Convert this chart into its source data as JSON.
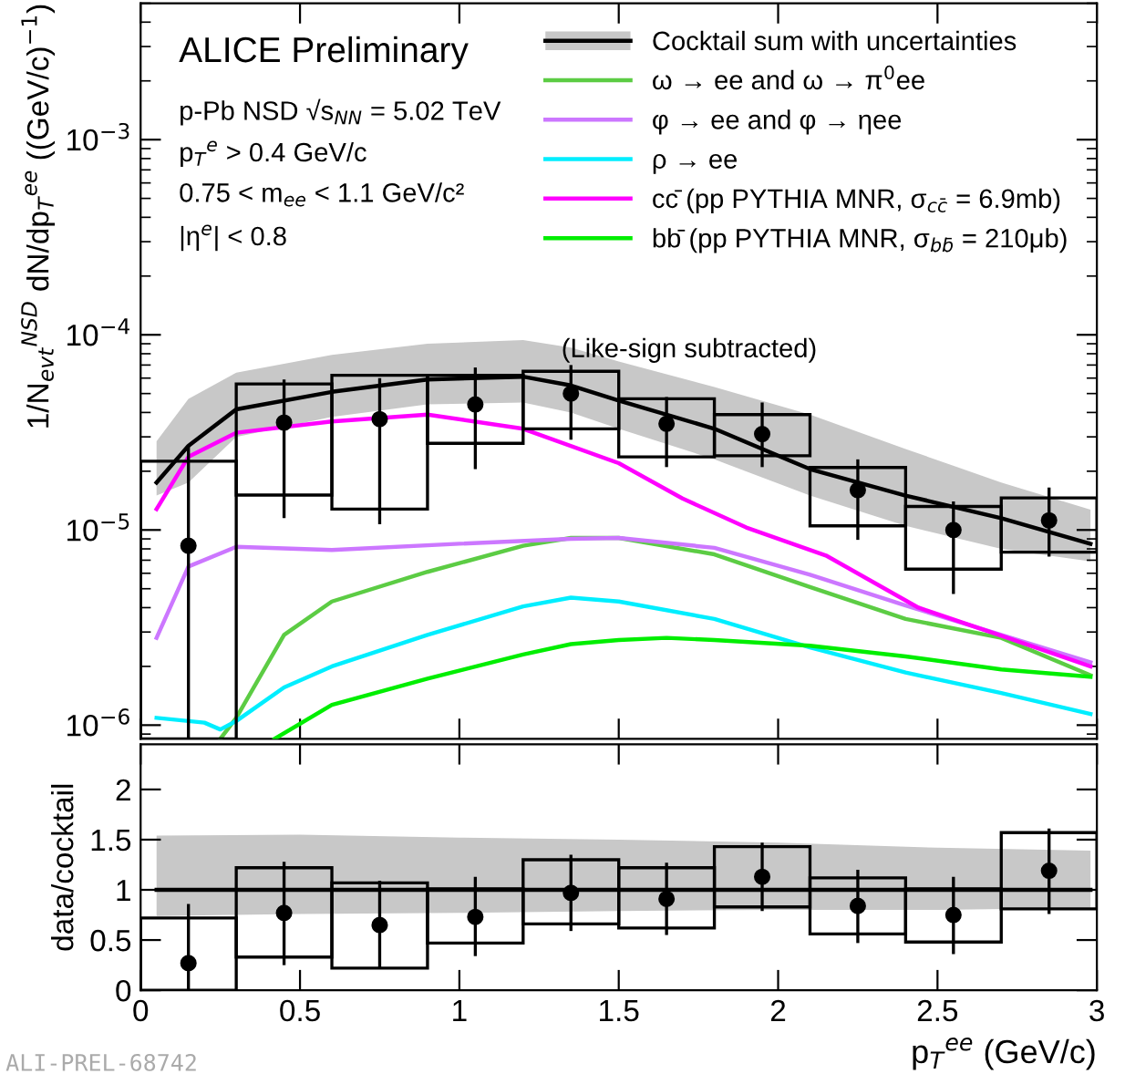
{
  "chart_data": [
    {
      "type": "line",
      "ylabel": "1/N$_{evt}$$^{NSD}$ dN/dp$_{T}$$^{ee}$ ((GeV/c)$^{−1}$)",
      "xlim": [
        0,
        3
      ],
      "xticks": [
        0,
        0.5,
        1,
        1.5,
        2,
        2.5,
        3
      ],
      "ylim": [
        8.5e-07,
        0.005
      ],
      "log": true,
      "tick_labels": "y",
      "legend": "top right",
      "grid": false,
      "yticks": [
        {
          "value": 1e-06,
          "label": "10$^{−6}$"
        },
        {
          "value": 1e-05,
          "label": "10$^{−5}$"
        },
        {
          "value": 0.0001,
          "label": "10$^{−4}$"
        },
        {
          "value": 0.001,
          "label": "10$^{−3}$"
        }
      ],
      "annotations": [
        "ALICE Preliminary",
        "p-Pb NSD √s$_{NN}$ = 5.02 TeV",
        "p$_{T}$$^{e}$ > 0.4 GeV/c",
        "0.75 < m$_{ee}$ < 1.1 GeV/c²",
        "|η$^{e}$| < 0.8",
        "(Like-sign subtracted)"
      ],
      "series": [
        {
          "name": "Cocktail sum with uncertainties",
          "color": "#000000",
          "x": [
            0.05,
            0.15,
            0.3,
            0.6,
            0.9,
            1.2,
            1.35,
            1.5,
            1.8,
            2.1,
            2.4,
            2.7,
            2.98
          ],
          "values": [
            1.75e-05,
            2.7e-05,
            4.15e-05,
            5.1e-05,
            5.9e-05,
            6.1e-05,
            5.5e-05,
            4.6e-05,
            3.3e-05,
            2.05e-05,
            1.5e-05,
            1.15e-05,
            8.5e-06
          ],
          "upper": [
            2.85e-05,
            4.7e-05,
            6.4e-05,
            7.9e-05,
            9e-05,
            9.4e-05,
            8.6e-05,
            7.3e-05,
            5.4e-05,
            3.9e-05,
            2.6e-05,
            1.75e-05,
            1.27e-05
          ],
          "lower": [
            1.5e-05,
            1.75e-05,
            3e-05,
            3.8e-05,
            4.4e-05,
            4.5e-05,
            4e-05,
            3.3e-05,
            2.3e-05,
            1.5e-05,
            1.05e-05,
            8e-06,
            6.9e-06
          ]
        },
        {
          "name": "ω → ee and ω → π$^{0}$ee",
          "color": "#5ccc44",
          "x": [
            0.25,
            0.3,
            0.45,
            0.6,
            0.9,
            1.2,
            1.35,
            1.5,
            1.8,
            2.1,
            2.4,
            2.7,
            2.98
          ],
          "values": [
            8.5e-07,
            1.09e-06,
            2.9e-06,
            4.3e-06,
            6.1e-06,
            8.3e-06,
            9.1e-06,
            9.1e-06,
            7.5e-06,
            5.1e-06,
            3.5e-06,
            2.8e-06,
            1.8e-06
          ]
        },
        {
          "name": "φ → ee and φ → ηee",
          "color": "#cc77ff",
          "x": [
            0.05,
            0.15,
            0.3,
            0.6,
            1.0,
            1.35,
            1.5,
            1.8,
            2.1,
            2.4,
            2.7,
            2.98
          ],
          "values": [
            2.8e-06,
            6.5e-06,
            8.2e-06,
            7.9e-06,
            8.5e-06,
            9e-06,
            9.1e-06,
            8.1e-06,
            5.9e-06,
            4.1e-06,
            2.9e-06,
            2.1e-06
          ]
        },
        {
          "name": "ρ → ee",
          "color": "#00eeff",
          "x": [
            0.05,
            0.2,
            0.25,
            0.3,
            0.45,
            0.6,
            0.9,
            1.2,
            1.35,
            1.5,
            1.8,
            2.1,
            2.4,
            2.7,
            2.98
          ],
          "values": [
            1.09e-06,
            1.03e-06,
            9.5e-07,
            1.05e-06,
            1.56e-06,
            2e-06,
            2.9e-06,
            4.06e-06,
            4.5e-06,
            4.3e-06,
            3.5e-06,
            2.5e-06,
            1.86e-06,
            1.46e-06,
            1.14e-06
          ]
        },
        {
          "name": "cc̄ (pp PYTHIA MNR, σ$_{cc̄}$ = 6.9mb)",
          "color": "#ff00ff",
          "x": [
            0.05,
            0.15,
            0.3,
            0.6,
            0.9,
            1.2,
            1.5,
            1.7,
            1.9,
            2.15,
            2.44,
            2.72,
            2.98
          ],
          "values": [
            1.28e-05,
            2.37e-05,
            3.15e-05,
            3.6e-05,
            3.9e-05,
            3.3e-05,
            2.2e-05,
            1.45e-05,
            1.03e-05,
            7.4e-06,
            4e-06,
            2.8e-06,
            2e-06
          ]
        },
        {
          "name": "bb̄ (pp PYTHIA MNR, σ$_{bb̄}$ = 210μb)",
          "color": "#00ee00",
          "x": [
            0.42,
            0.6,
            0.9,
            1.2,
            1.35,
            1.5,
            1.65,
            1.8,
            2.1,
            2.4,
            2.7,
            2.98
          ],
          "values": [
            8.5e-07,
            1.27e-06,
            1.73e-06,
            2.3e-06,
            2.6e-06,
            2.73e-06,
            2.8e-06,
            2.73e-06,
            2.55e-06,
            2.25e-06,
            1.93e-06,
            1.77e-06
          ]
        },
        {
          "type": "bar",
          "color": "#000000",
          "x": [
            0.15,
            0.45,
            0.75,
            1.05,
            1.35,
            1.65,
            1.95,
            2.25,
            2.55,
            2.85
          ],
          "base": [
            8.5e-07,
            1.51e-05,
            1.28e-05,
            2.78e-05,
            3.3e-05,
            2.37e-05,
            2.4e-05,
            1.05e-05,
            6.3e-06,
            7.7e-06
          ],
          "values": [
            2.165e-05,
            4.09e-05,
            4.92e-05,
            3.42e-05,
            3.2e-05,
            2.33e-05,
            1.5e-05,
            1.04e-05,
            6.9e-06,
            6.9e-06
          ]
        },
        {
          "type": "scatter",
          "color": "#000000",
          "marker": "circle",
          "x": [
            0.15,
            0.45,
            0.75,
            1.05,
            1.35,
            1.65,
            1.95,
            2.25,
            2.55,
            2.85
          ],
          "values": [
            8.3e-06,
            3.55e-05,
            3.7e-05,
            4.4e-05,
            5e-05,
            3.5e-05,
            3.1e-05,
            1.6e-05,
            1e-05,
            1.12e-05
          ],
          "errors": [
            [
              8.5e-07,
              2.7e-05
            ],
            [
              1.15e-05,
              5.9e-05
            ],
            [
              1.07e-05,
              6e-05
            ],
            [
              2.05e-05,
              6.8e-05
            ],
            [
              2.9e-05,
              7e-05
            ],
            [
              2.1e-05,
              4.8e-05
            ],
            [
              2.1e-05,
              4.5e-05
            ],
            [
              8.9e-06,
              2.3e-05
            ],
            [
              4.7e-06,
              1.4e-05
            ],
            [
              7.3e-06,
              1.65e-05
            ]
          ]
        }
      ]
    },
    {
      "type": "line",
      "xlabel": "p$_{T}$$^{ee}$ (GeV/c)",
      "ylabel": "data/cocktail",
      "xlim": [
        0,
        3
      ],
      "xticks": [
        0,
        0.5,
        1,
        1.5,
        2,
        2.5,
        3
      ],
      "ylim": [
        0,
        2.45
      ],
      "yticks": [
        0,
        0.5,
        1,
        1.5,
        2
      ],
      "grid": false,
      "annotations": [
        "ALI-PREL-68742"
      ],
      "series": [
        {
          "color": "#000000",
          "x": [
            0.05,
            0.5,
            1.0,
            1.5,
            2.0,
            2.5,
            2.98
          ],
          "values": [
            1,
            1,
            1,
            1,
            1,
            1,
            1
          ],
          "upper": [
            1.54,
            1.55,
            1.52,
            1.5,
            1.47,
            1.42,
            1.39
          ],
          "lower": [
            0.74,
            0.76,
            0.77,
            0.79,
            0.8,
            0.8,
            0.82
          ]
        },
        {
          "type": "bar",
          "color": "#000000",
          "x": [
            0.15,
            0.45,
            0.75,
            1.05,
            1.35,
            1.65,
            1.95,
            2.25,
            2.55,
            2.85
          ],
          "base": [
            0,
            0.33,
            0.22,
            0.47,
            0.66,
            0.62,
            0.83,
            0.56,
            0.48,
            0.81
          ],
          "values": [
            0.72,
            0.89,
            0.85,
            0.54,
            0.64,
            0.6,
            0.6,
            0.56,
            0.53,
            0.76
          ]
        },
        {
          "type": "scatter",
          "color": "#000000",
          "marker": "circle",
          "x": [
            0.15,
            0.45,
            0.75,
            1.05,
            1.35,
            1.65,
            1.95,
            2.25,
            2.55,
            2.85
          ],
          "values": [
            0.27,
            0.77,
            0.65,
            0.73,
            0.97,
            0.91,
            1.13,
            0.84,
            0.75,
            1.19
          ],
          "errors": [
            [
              0,
              0.86
            ],
            [
              0.25,
              1.28
            ],
            [
              0.21,
              1.09
            ],
            [
              0.34,
              1.13
            ],
            [
              0.59,
              1.35
            ],
            [
              0.55,
              1.27
            ],
            [
              0.79,
              1.47
            ],
            [
              0.47,
              1.2
            ],
            [
              0.36,
              1.13
            ],
            [
              0.76,
              1.61
            ]
          ]
        }
      ]
    }
  ]
}
